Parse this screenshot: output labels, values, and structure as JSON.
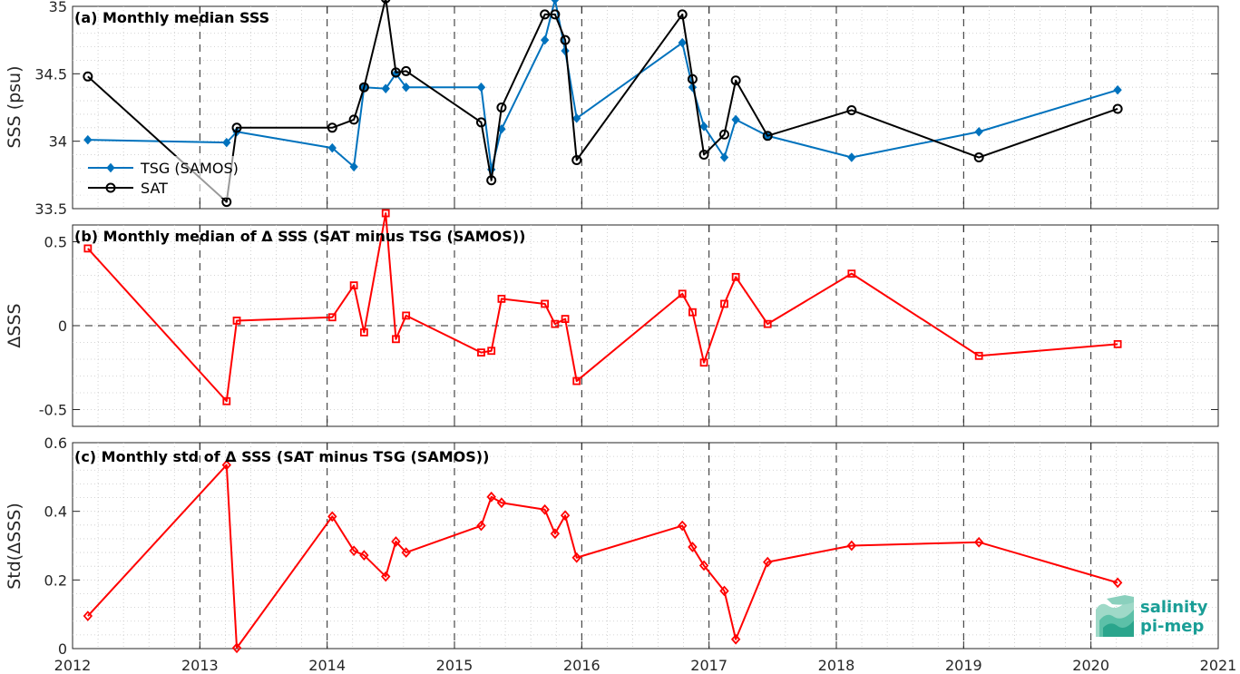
{
  "chart_data": [
    {
      "type": "line",
      "title": "(a) Monthly median SSS",
      "xlabel": "",
      "ylabel": "SSS (psu)",
      "xlim": [
        2012,
        2021
      ],
      "ylim": [
        33.5,
        35
      ],
      "yticks": [
        33.5,
        34,
        34.5,
        35
      ],
      "ytick_labels": [
        "33.5",
        "34",
        "34.5",
        "35"
      ],
      "grid": true,
      "legend": "middle-left",
      "colors": {
        "TSG (SAMOS)": "#0072BD",
        "SAT": "#000000"
      },
      "series": [
        {
          "name": "TSG (SAMOS)",
          "marker": "diamond",
          "x": [
            2012.12,
            2013.21,
            2013.29,
            2014.04,
            2014.21,
            2014.29,
            2014.46,
            2014.54,
            2014.62,
            2015.21,
            2015.29,
            2015.37,
            2015.71,
            2015.79,
            2015.87,
            2015.96,
            2016.79,
            2016.87,
            2016.96,
            2017.12,
            2017.21,
            2017.46,
            2018.12,
            2019.12,
            2020.21
          ],
          "y": [
            34.01,
            33.99,
            34.07,
            33.95,
            33.81,
            34.4,
            34.39,
            34.5,
            34.4,
            34.4,
            33.79,
            34.09,
            34.75,
            35.05,
            34.67,
            34.17,
            34.73,
            34.4,
            34.11,
            33.88,
            34.16,
            34.04,
            33.88,
            34.07,
            34.38
          ]
        },
        {
          "name": "SAT",
          "marker": "circle",
          "x": [
            2012.12,
            2013.21,
            2013.29,
            2014.04,
            2014.21,
            2014.29,
            2014.46,
            2014.54,
            2014.62,
            2015.21,
            2015.29,
            2015.37,
            2015.71,
            2015.79,
            2015.87,
            2015.96,
            2016.79,
            2016.87,
            2016.96,
            2017.12,
            2017.21,
            2017.46,
            2018.12,
            2019.12,
            2020.21
          ],
          "y": [
            34.48,
            33.55,
            34.1,
            34.1,
            34.16,
            34.4,
            35.06,
            34.51,
            34.52,
            34.14,
            33.71,
            34.25,
            34.94,
            34.94,
            34.75,
            33.86,
            34.94,
            34.46,
            33.9,
            34.05,
            34.45,
            34.04,
            34.23,
            33.88,
            34.24
          ]
        }
      ]
    },
    {
      "type": "line",
      "title": "(b) Monthly median of Δ SSS (SAT minus TSG (SAMOS))",
      "xlabel": "",
      "ylabel": "ΔSSS",
      "xlim": [
        2012,
        2021
      ],
      "ylim": [
        -0.6,
        0.6
      ],
      "yticks": [
        -0.5,
        0,
        0.5
      ],
      "ytick_labels": [
        "-0.5",
        "0",
        "0.5"
      ],
      "grid": true,
      "zero_line": true,
      "colors": {
        "delta": "#FF0000"
      },
      "series": [
        {
          "marker": "square",
          "x": [
            2012.12,
            2013.21,
            2013.29,
            2014.04,
            2014.21,
            2014.29,
            2014.46,
            2014.54,
            2014.62,
            2015.21,
            2015.29,
            2015.37,
            2015.71,
            2015.79,
            2015.87,
            2015.96,
            2016.79,
            2016.87,
            2016.96,
            2017.12,
            2017.21,
            2017.46,
            2018.12,
            2019.12,
            2020.21
          ],
          "y": [
            0.46,
            -0.45,
            0.03,
            0.05,
            0.24,
            -0.04,
            0.67,
            -0.08,
            0.06,
            -0.16,
            -0.15,
            0.16,
            0.13,
            0.01,
            0.04,
            -0.33,
            0.19,
            0.08,
            -0.22,
            0.13,
            0.29,
            0.01,
            0.31,
            -0.18,
            -0.11
          ]
        }
      ]
    },
    {
      "type": "line",
      "title": "(c) Monthly std of Δ SSS (SAT minus TSG (SAMOS))",
      "xlabel": "",
      "ylabel": "Std(ΔSSS)",
      "xlim": [
        2012,
        2021
      ],
      "ylim": [
        0,
        0.6
      ],
      "yticks": [
        0,
        0.2,
        0.4,
        0.6
      ],
      "ytick_labels": [
        "0",
        "0.2",
        "0.4",
        "0.6"
      ],
      "xticks": [
        2012,
        2013,
        2014,
        2015,
        2016,
        2017,
        2018,
        2019,
        2020,
        2021
      ],
      "xtick_labels": [
        "2012",
        "2013",
        "2014",
        "2015",
        "2016",
        "2017",
        "2018",
        "2019",
        "2020",
        "2021"
      ],
      "grid": true,
      "colors": {
        "std": "#FF0000"
      },
      "series": [
        {
          "marker": "diamond",
          "x": [
            2012.12,
            2013.21,
            2013.29,
            2014.04,
            2014.21,
            2014.29,
            2014.46,
            2014.54,
            2014.62,
            2015.21,
            2015.29,
            2015.37,
            2015.71,
            2015.79,
            2015.87,
            2015.96,
            2016.79,
            2016.87,
            2016.96,
            2017.12,
            2017.21,
            2017.46,
            2018.12,
            2019.12,
            2020.21
          ],
          "y": [
            0.095,
            0.535,
            0.002,
            0.385,
            0.285,
            0.272,
            0.21,
            0.312,
            0.28,
            0.358,
            0.442,
            0.425,
            0.405,
            0.335,
            0.388,
            0.265,
            0.358,
            0.296,
            0.242,
            0.168,
            0.027,
            0.252,
            0.3,
            0.31,
            0.192
          ]
        }
      ]
    }
  ],
  "logo": {
    "line1": "salinity",
    "line2": "pi-mep"
  }
}
